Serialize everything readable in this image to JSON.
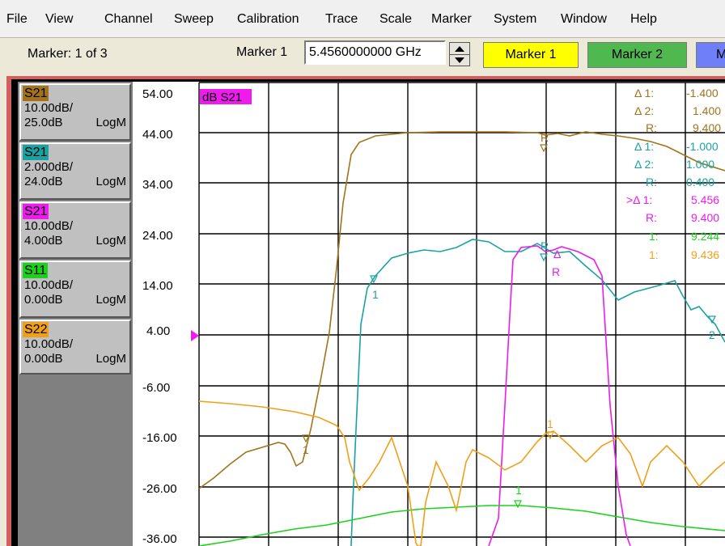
{
  "menu": [
    "File",
    "View",
    "Channel",
    "Sweep",
    "Calibration",
    "Trace",
    "Scale",
    "Marker",
    "System",
    "Window",
    "Help"
  ],
  "toolbar": {
    "marker_status": "Marker: 1 of 3",
    "marker_field_label": "Marker 1",
    "marker_value": "5.4560000000 GHz",
    "buttons": [
      {
        "label": "Marker 1",
        "color": "#ffff00"
      },
      {
        "label": "Marker 2",
        "color": "#4fb84f"
      },
      {
        "label": "M",
        "color": "#6f7ff7"
      }
    ]
  },
  "traces": [
    {
      "name": "S21",
      "scale": "10.00dB/",
      "ref": "25.0dB",
      "format": "LogM",
      "color": "#a2731a",
      "selected": false
    },
    {
      "name": "S21",
      "scale": "2.000dB/",
      "ref": "24.0dB",
      "format": "LogM",
      "color": "#1aa2a2",
      "selected": false
    },
    {
      "name": "S21",
      "scale": "10.00dB/",
      "ref": "4.00dB",
      "format": "LogM",
      "color": "#ee1aee",
      "selected": true
    },
    {
      "name": "S11",
      "scale": "10.00dB/",
      "ref": "0.00dB",
      "format": "LogM",
      "color": "#1ad21a",
      "selected": false
    },
    {
      "name": "S22",
      "scale": "10.00dB/",
      "ref": "0.00dB",
      "format": "LogM",
      "color": "#f0a018",
      "selected": false
    }
  ],
  "plot": {
    "active_trace_title": "dB S21",
    "y_tick_labels": [
      "54.00",
      "44.00",
      "34.00",
      "24.00",
      "14.00",
      "4.00",
      "-6.00",
      "-16.00",
      "-26.00",
      "-36.00"
    ],
    "ref_level": 4.0
  },
  "marker_readout": [
    {
      "label": "Δ 1:",
      "value": "-1.400",
      "color": "#a2731a"
    },
    {
      "label": "Δ 2:",
      "value": "1.400",
      "color": "#a2731a"
    },
    {
      "label": "R:",
      "value": "9.400",
      "color": "#a2731a"
    },
    {
      "label": "Δ 1:",
      "value": "-1.000",
      "color": "#1aa2a2"
    },
    {
      "label": "Δ 2:",
      "value": "1.000",
      "color": "#1aa2a2"
    },
    {
      "label": "R:",
      "value": "0.400",
      "color": "#1aa2a2"
    },
    {
      "label": ">Δ 1:",
      "value": "5.456",
      "color": "#ee1aee"
    },
    {
      "label": "R:",
      "value": "9.400",
      "color": "#ee1aee"
    },
    {
      "label": "1:",
      "value": "9.244",
      "color": "#1ad21a"
    },
    {
      "label": "1:",
      "value": "9.436",
      "color": "#f0a018"
    }
  ],
  "trace_markers": [
    {
      "label": "1",
      "color": "#a2731a"
    },
    {
      "label": "R",
      "color": "#a2731a"
    },
    {
      "label": "1",
      "color": "#1aa2a2"
    },
    {
      "label": "R",
      "color": "#1aa2a2"
    },
    {
      "label": "2",
      "color": "#1aa2a2"
    },
    {
      "label": "Δ",
      "color": "#ee1aee"
    },
    {
      "label": "R",
      "color": "#ee1aee"
    },
    {
      "label": "1",
      "color": "#1ad21a"
    },
    {
      "label": "1",
      "color": "#f0a018"
    }
  ]
}
